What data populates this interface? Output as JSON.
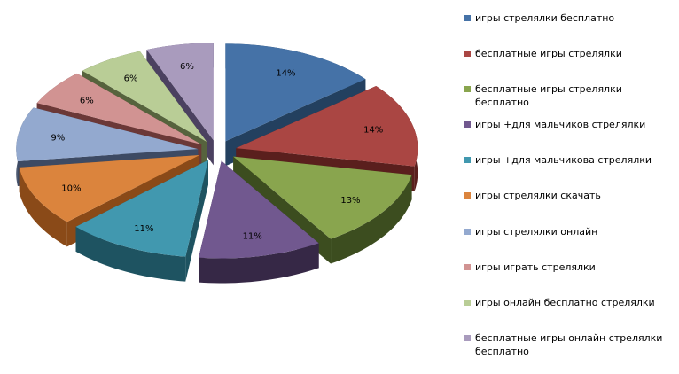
{
  "chart_data": {
    "type": "pie",
    "style": "3d-exploded",
    "title": "",
    "series": [
      {
        "name": "игры стрелялки бесплатно",
        "value": 14,
        "label": "14%",
        "color": "#4572A7",
        "dark": "#23405f"
      },
      {
        "name": "бесплатные игры стрелялки",
        "value": 14,
        "label": "14%",
        "color": "#AA4643",
        "dark": "#5a1f1d"
      },
      {
        "name": "бесплатные игры стрелялки бесплатно",
        "value": 13,
        "label": "13%",
        "color": "#89A54E",
        "dark": "#3c4d1f"
      },
      {
        "name": "игры +для мальчиков стрелялки",
        "value": 11,
        "label": "11%",
        "color": "#71588F",
        "dark": "#362846"
      },
      {
        "name": "игры +для мальчикова стрелялки",
        "value": 11,
        "label": "11%",
        "color": "#4198AF",
        "dark": "#1e5361"
      },
      {
        "name": "игры стрелялки скачать",
        "value": 10,
        "label": "10%",
        "color": "#DB843D",
        "dark": "#8a4a18"
      },
      {
        "name": "игры стрелялки онлайн",
        "value": 9,
        "label": "9%",
        "color": "#93A9CF",
        "dark": "#3d4a63"
      },
      {
        "name": "игры играть стрелялки",
        "value": 6,
        "label": "6%",
        "color": "#D19392",
        "dark": "#6b3837"
      },
      {
        "name": "игры онлайн бесплатно стрелялки",
        "value": 6,
        "label": "6%",
        "color": "#B9CD96",
        "dark": "#56633d"
      },
      {
        "name": "бесплатные игры онлайн стрелялки бесплатно",
        "value": 6,
        "label": "6%",
        "color": "#A99BBD",
        "dark": "#4b4160"
      }
    ],
    "legend_position": "right"
  }
}
